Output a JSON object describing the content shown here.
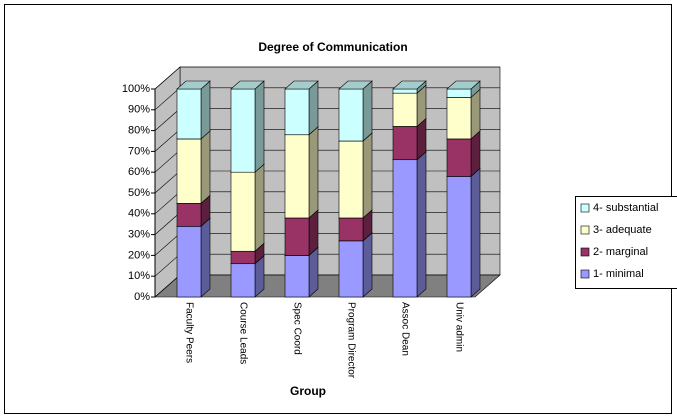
{
  "chart_data": {
    "type": "stacked-bar-3d",
    "title": "Degree of Communication",
    "x_label": "Group",
    "categories": [
      "Faculty Peers",
      "Course Leads",
      "Spec Coord",
      "Program Director",
      "Assoc Dean",
      "Univ admin"
    ],
    "series": [
      {
        "name": "1- minimal",
        "color": "#9999ff",
        "values": [
          34,
          16,
          20,
          27,
          66,
          58
        ]
      },
      {
        "name": "2- marginal",
        "color": "#993366",
        "values": [
          11,
          6,
          18,
          11,
          16,
          18
        ]
      },
      {
        "name": "3- adequate",
        "color": "#ffffcc",
        "values": [
          31,
          38,
          40,
          37,
          16,
          20
        ]
      },
      {
        "name": "4- substantial",
        "color": "#ccffff",
        "values": [
          24,
          40,
          22,
          25,
          2,
          4
        ]
      }
    ],
    "ylim": [
      0,
      100
    ],
    "yticks": [
      {
        "value": 0,
        "label": "0%"
      },
      {
        "value": 10,
        "label": "10%"
      },
      {
        "value": 20,
        "label": "20%"
      },
      {
        "value": 30,
        "label": "30%"
      },
      {
        "value": 40,
        "label": "40%"
      },
      {
        "value": 50,
        "label": "50%"
      },
      {
        "value": 60,
        "label": "60%"
      },
      {
        "value": 70,
        "label": "70%"
      },
      {
        "value": 80,
        "label": "80%"
      },
      {
        "value": 90,
        "label": "90%"
      },
      {
        "value": 100,
        "label": "100%"
      }
    ],
    "grid": true,
    "legend": "right"
  }
}
